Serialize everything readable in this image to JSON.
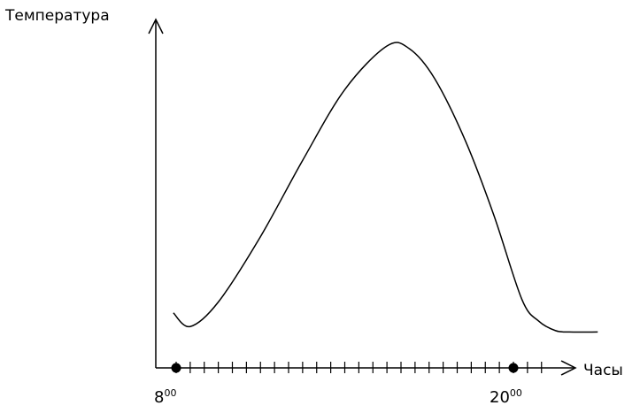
{
  "chart_data": {
    "type": "line",
    "ylabel": "Температура",
    "xlabel": "Часы",
    "x_tick_labels": [
      {
        "hour": "8",
        "sup": "00"
      },
      {
        "hour": "20",
        "sup": "00"
      }
    ],
    "marked_points": [
      8,
      20
    ],
    "xlim": [
      7.9,
      23
    ],
    "series": [
      {
        "x": [
          7.9,
          8.5,
          9.5,
          11,
          12.5,
          14,
          15.5,
          16.3,
          17.2,
          18.3,
          19.3,
          20.3,
          20.9,
          21.5,
          22.0,
          23.0
        ],
        "y": [
          0.02,
          -0.03,
          0.06,
          0.3,
          0.58,
          0.84,
          1.0,
          0.99,
          0.88,
          0.65,
          0.38,
          0.07,
          -0.01,
          -0.045,
          -0.05,
          -0.05
        ]
      }
    ],
    "grid": false,
    "colors": {
      "line": "#000000",
      "axis": "#000000"
    }
  }
}
